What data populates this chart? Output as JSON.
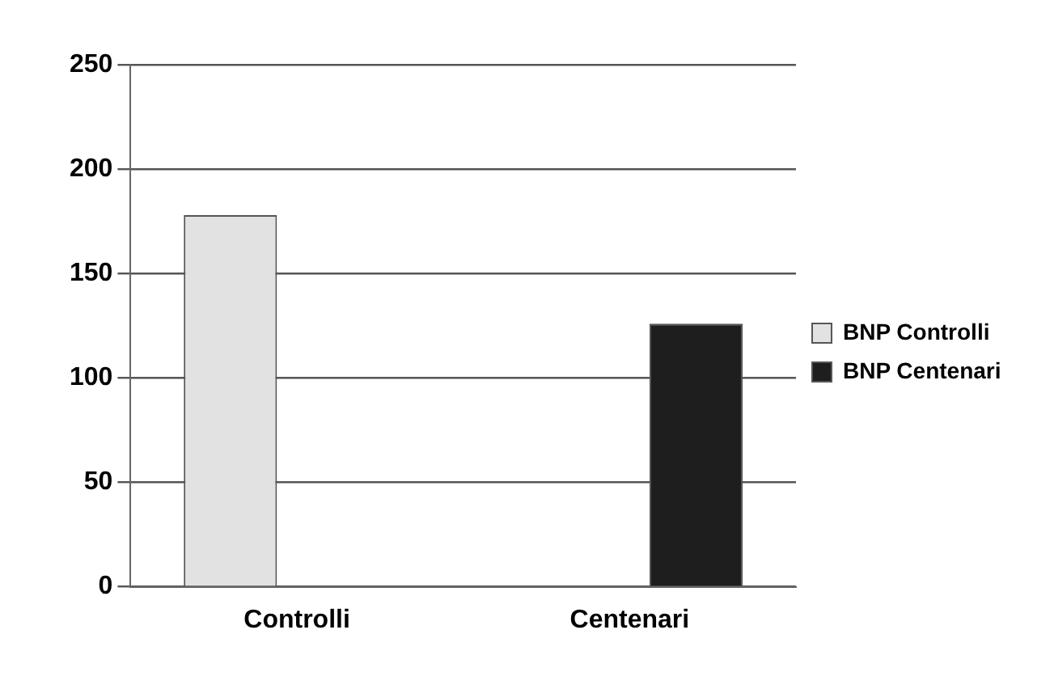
{
  "chart_data": {
    "type": "bar",
    "categories": [
      "Controlli",
      "Centenari"
    ],
    "series": [
      {
        "name": "BNP Controlli",
        "color": "#e2e2e2",
        "values": [
          178,
          null
        ]
      },
      {
        "name": "BNP Centenari",
        "color": "#1e1e1e",
        "values": [
          null,
          126
        ]
      }
    ],
    "ylim": [
      0,
      250
    ],
    "yticks": [
      0,
      50,
      100,
      150,
      200,
      250
    ],
    "grid": "y",
    "legend": "right"
  }
}
